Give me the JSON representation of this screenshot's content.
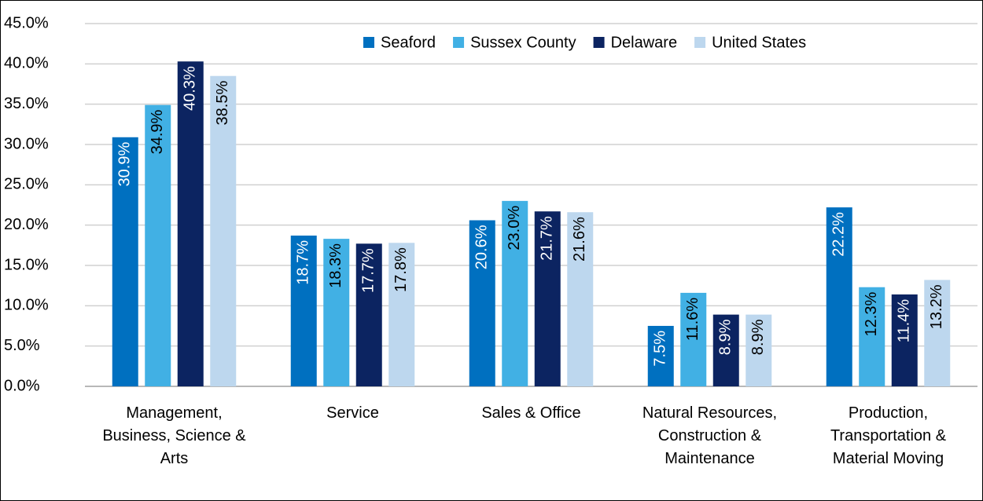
{
  "chart_data": {
    "type": "bar",
    "categories": [
      "Management, Business, Science & Arts",
      "Service",
      "Sales & Office",
      "Natural Resources, Construction & Maintenance",
      "Production, Transportation & Material Moving"
    ],
    "series": [
      {
        "name": "Seaford",
        "color": "#0070c0",
        "label_color": "#ffffff",
        "values": [
          30.9,
          18.7,
          20.6,
          7.5,
          22.2
        ],
        "value_labels": [
          "30.9%",
          "18.7%",
          "20.6%",
          "7.5%",
          "22.2%"
        ]
      },
      {
        "name": "Sussex County",
        "color": "#41b0e4",
        "label_color": "#000000",
        "values": [
          34.9,
          18.3,
          23.0,
          11.6,
          12.3
        ],
        "value_labels": [
          "34.9%",
          "18.3%",
          "23.0%",
          "11.6%",
          "12.3%"
        ]
      },
      {
        "name": "Delaware",
        "color": "#0c2461",
        "label_color": "#ffffff",
        "values": [
          40.3,
          17.7,
          21.7,
          8.9,
          11.4
        ],
        "value_labels": [
          "40.3%",
          "17.7%",
          "21.7%",
          "8.9%",
          "11.4%"
        ]
      },
      {
        "name": "United States",
        "color": "#bdd7ee",
        "label_color": "#000000",
        "values": [
          38.5,
          17.8,
          21.6,
          8.9,
          13.2
        ],
        "value_labels": [
          "38.5%",
          "17.8%",
          "21.6%",
          "8.9%",
          "13.2%"
        ]
      }
    ],
    "ylim": [
      0,
      45
    ],
    "yticks": [
      {
        "value": 0,
        "label": "0.0%"
      },
      {
        "value": 5,
        "label": "5.0%"
      },
      {
        "value": 10,
        "label": "10.0%"
      },
      {
        "value": 15,
        "label": "15.0%"
      },
      {
        "value": 20,
        "label": "20.0%"
      },
      {
        "value": 25,
        "label": "25.0%"
      },
      {
        "value": 30,
        "label": "30.0%"
      },
      {
        "value": 35,
        "label": "35.0%"
      },
      {
        "value": 40,
        "label": "40.0%"
      },
      {
        "value": 45,
        "label": "45.0%"
      }
    ],
    "grid": true,
    "legend": "top"
  }
}
